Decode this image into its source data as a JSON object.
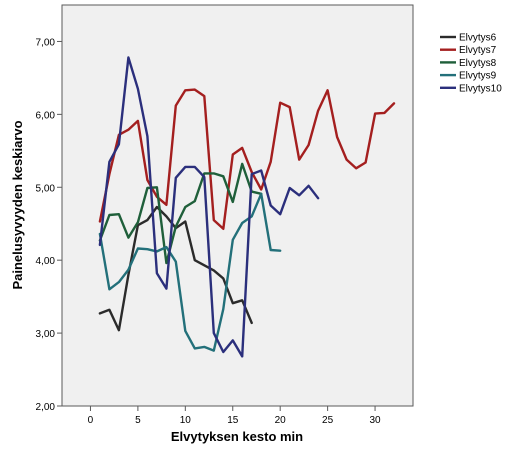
{
  "chart_data": {
    "type": "line",
    "title": "",
    "xlabel": "Elvytyksen kesto min",
    "ylabel": "Painelusyvyyden keskiarvo",
    "xlim": [
      -3,
      34
    ],
    "ylim": [
      2.0,
      7.5
    ],
    "x_ticks": [
      0,
      5,
      10,
      15,
      20,
      25,
      30
    ],
    "x_tick_labels": [
      "0",
      "5",
      "10",
      "15",
      "20",
      "25",
      "30"
    ],
    "y_ticks": [
      2.0,
      3.0,
      4.0,
      5.0,
      6.0,
      7.0
    ],
    "y_tick_labels": [
      "2,00",
      "3,00",
      "4,00",
      "5,00",
      "6,00",
      "7,00"
    ],
    "grid": false,
    "legend_position": "top-right",
    "plot_background": "#f0f0f0",
    "series": [
      {
        "name": "Elvytys6",
        "color": "#2b2b2b",
        "x": [
          1,
          2,
          3,
          4,
          5,
          6,
          7,
          8,
          9,
          10,
          11,
          12,
          13,
          14,
          15,
          16,
          17
        ],
        "y": [
          3.27,
          3.32,
          3.04,
          3.8,
          4.48,
          4.55,
          4.73,
          4.6,
          4.44,
          4.53,
          4.0,
          3.93,
          3.86,
          3.75,
          3.41,
          3.45,
          3.14
        ]
      },
      {
        "name": "Elvytys7",
        "color": "#a41f1f",
        "x": [
          1,
          2,
          3,
          4,
          5,
          6,
          7,
          8,
          9,
          10,
          11,
          12,
          13,
          14,
          15,
          16,
          17,
          18,
          19,
          20,
          21,
          22,
          23,
          24,
          25,
          26,
          27,
          28,
          29,
          30,
          31,
          32
        ],
        "y": [
          4.53,
          5.18,
          5.72,
          5.79,
          5.91,
          5.1,
          4.87,
          4.76,
          6.12,
          6.33,
          6.34,
          6.25,
          4.55,
          4.43,
          5.45,
          5.54,
          5.21,
          4.97,
          5.35,
          6.16,
          6.1,
          5.38,
          5.58,
          6.05,
          6.33,
          5.69,
          5.38,
          5.26,
          5.34,
          6.01,
          6.02,
          6.15
        ]
      },
      {
        "name": "Elvytys8",
        "color": "#1f5f3a",
        "x": [
          1,
          2,
          3,
          4,
          5,
          6,
          7,
          8,
          9,
          10,
          11,
          12,
          13,
          14,
          15,
          16,
          17,
          18
        ],
        "y": [
          4.27,
          4.62,
          4.63,
          4.31,
          4.52,
          4.99,
          5.0,
          3.96,
          4.46,
          4.73,
          4.81,
          5.19,
          5.19,
          5.15,
          4.8,
          5.32,
          4.94,
          4.91
        ]
      },
      {
        "name": "Elvytys9",
        "color": "#23707a",
        "x": [
          1,
          2,
          3,
          4,
          5,
          6,
          7,
          8,
          9,
          10,
          11,
          12,
          13,
          14,
          15,
          16,
          17,
          18,
          19,
          20
        ],
        "y": [
          4.36,
          3.6,
          3.7,
          3.87,
          4.16,
          4.15,
          4.12,
          4.18,
          3.98,
          3.03,
          2.79,
          2.81,
          2.76,
          3.33,
          4.28,
          4.51,
          4.6,
          4.91,
          4.14,
          4.13
        ]
      },
      {
        "name": "Elvytys10",
        "color": "#2b2f7c",
        "x": [
          1,
          2,
          3,
          4,
          5,
          6,
          7,
          8,
          9,
          10,
          11,
          12,
          13,
          14,
          15,
          16,
          17,
          18,
          19,
          20,
          21,
          22,
          23,
          24
        ],
        "y": [
          4.21,
          5.35,
          5.59,
          6.78,
          6.35,
          5.7,
          3.82,
          3.61,
          5.13,
          5.28,
          5.28,
          5.14,
          3.0,
          2.74,
          2.9,
          2.68,
          5.18,
          5.23,
          4.75,
          4.63,
          4.99,
          4.89,
          5.02,
          4.85
        ]
      }
    ]
  }
}
